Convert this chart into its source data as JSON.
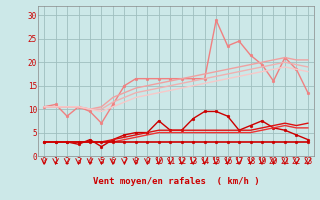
{
  "bg_color": "#cce8e8",
  "grid_color": "#9fbfbf",
  "xlabel": "Vent moyen/en rafales  ( km/h )",
  "xlim": [
    -0.5,
    23.5
  ],
  "ylim": [
    0,
    32
  ],
  "yticks": [
    0,
    5,
    10,
    15,
    20,
    25,
    30
  ],
  "xticks": [
    0,
    1,
    2,
    3,
    4,
    5,
    6,
    7,
    8,
    9,
    10,
    11,
    12,
    13,
    14,
    15,
    16,
    17,
    18,
    19,
    20,
    21,
    22,
    23
  ],
  "label_color": "#cc0000",
  "lines_light": [
    {
      "x": [
        0,
        1,
        2,
        3,
        4,
        5,
        6,
        7,
        8,
        9,
        10,
        11,
        12,
        13,
        14,
        15,
        16,
        17,
        18,
        19,
        20,
        21,
        22,
        23
      ],
      "y": [
        10.5,
        11.0,
        8.5,
        10.5,
        9.5,
        7.0,
        11.0,
        15.0,
        16.5,
        16.5,
        16.5,
        16.5,
        16.5,
        16.5,
        16.5,
        29.0,
        23.5,
        24.5,
        21.5,
        19.5,
        16.0,
        21.0,
        18.5,
        13.5
      ],
      "color": "#f08080",
      "marker": "o",
      "ms": 2,
      "lw": 1.0
    },
    {
      "x": [
        0,
        1,
        2,
        3,
        4,
        5,
        6,
        7,
        8,
        9,
        10,
        11,
        12,
        13,
        14,
        15,
        16,
        17,
        18,
        19,
        20,
        21,
        22,
        23
      ],
      "y": [
        10.5,
        10.5,
        10.5,
        10.5,
        10.0,
        10.5,
        12.5,
        13.5,
        14.5,
        15.0,
        15.5,
        16.0,
        16.5,
        17.0,
        17.5,
        18.0,
        18.5,
        19.0,
        19.5,
        20.0,
        20.5,
        21.0,
        20.5,
        20.5
      ],
      "color": "#f0a0a0",
      "marker": null,
      "ms": 0,
      "lw": 1.0
    },
    {
      "x": [
        0,
        1,
        2,
        3,
        4,
        5,
        6,
        7,
        8,
        9,
        10,
        11,
        12,
        13,
        14,
        15,
        16,
        17,
        18,
        19,
        20,
        21,
        22,
        23
      ],
      "y": [
        10.5,
        10.5,
        10.5,
        10.5,
        10.0,
        10.0,
        11.5,
        12.5,
        13.5,
        14.0,
        14.5,
        15.0,
        15.5,
        16.0,
        16.5,
        17.0,
        17.5,
        18.0,
        18.5,
        19.0,
        19.5,
        20.0,
        19.5,
        19.0
      ],
      "color": "#f0b0b0",
      "marker": null,
      "ms": 0,
      "lw": 1.0
    },
    {
      "x": [
        0,
        1,
        2,
        3,
        4,
        5,
        6,
        7,
        8,
        9,
        10,
        11,
        12,
        13,
        14,
        15,
        16,
        17,
        18,
        19,
        20,
        21,
        22,
        23
      ],
      "y": [
        10.5,
        10.5,
        10.5,
        10.5,
        10.0,
        9.5,
        10.5,
        11.5,
        12.5,
        13.0,
        13.5,
        14.0,
        14.5,
        15.0,
        15.5,
        16.0,
        16.5,
        17.0,
        17.5,
        18.0,
        18.5,
        19.0,
        18.5,
        18.0
      ],
      "color": "#f8c8c8",
      "marker": null,
      "ms": 0,
      "lw": 1.0
    }
  ],
  "lines_dark": [
    {
      "x": [
        0,
        1,
        2,
        3,
        4,
        5,
        6,
        7,
        8,
        9,
        10,
        11,
        12,
        13,
        14,
        15,
        16,
        17,
        18,
        19,
        20,
        21,
        22,
        23
      ],
      "y": [
        3.0,
        3.0,
        3.0,
        2.5,
        3.5,
        2.0,
        3.5,
        4.5,
        5.0,
        5.0,
        7.5,
        5.5,
        5.5,
        8.0,
        9.5,
        9.5,
        8.5,
        5.5,
        6.5,
        7.5,
        6.0,
        5.5,
        4.5,
        3.5
      ],
      "color": "#cc0000",
      "marker": "o",
      "ms": 2,
      "lw": 1.0
    },
    {
      "x": [
        0,
        1,
        2,
        3,
        4,
        5,
        6,
        7,
        8,
        9,
        10,
        11,
        12,
        13,
        14,
        15,
        16,
        17,
        18,
        19,
        20,
        21,
        22,
        23
      ],
      "y": [
        3.0,
        3.0,
        3.0,
        3.0,
        3.0,
        3.0,
        3.5,
        4.0,
        4.5,
        5.0,
        5.5,
        5.5,
        5.5,
        5.5,
        5.5,
        5.5,
        5.5,
        5.5,
        5.5,
        6.0,
        6.5,
        7.0,
        6.5,
        7.0
      ],
      "color": "#dd1111",
      "marker": null,
      "ms": 0,
      "lw": 1.0
    },
    {
      "x": [
        0,
        1,
        2,
        3,
        4,
        5,
        6,
        7,
        8,
        9,
        10,
        11,
        12,
        13,
        14,
        15,
        16,
        17,
        18,
        19,
        20,
        21,
        22,
        23
      ],
      "y": [
        3.0,
        3.0,
        3.0,
        3.0,
        3.0,
        3.0,
        3.0,
        3.5,
        4.0,
        4.5,
        5.0,
        5.0,
        5.0,
        5.0,
        5.0,
        5.0,
        5.0,
        5.0,
        5.0,
        5.5,
        6.0,
        6.5,
        6.0,
        6.0
      ],
      "color": "#ee3333",
      "marker": null,
      "ms": 0,
      "lw": 1.0
    },
    {
      "x": [
        0,
        1,
        2,
        3,
        4,
        5,
        6,
        7,
        8,
        9,
        10,
        11,
        12,
        13,
        14,
        15,
        16,
        17,
        18,
        19,
        20,
        21,
        22,
        23
      ],
      "y": [
        3.0,
        3.0,
        3.0,
        3.0,
        3.0,
        3.0,
        3.0,
        3.0,
        3.0,
        3.0,
        3.0,
        3.0,
        3.0,
        3.0,
        3.0,
        3.0,
        3.0,
        3.0,
        3.0,
        3.0,
        3.0,
        3.0,
        3.0,
        3.0
      ],
      "color": "#cc0000",
      "marker": "o",
      "ms": 2,
      "lw": 1.2
    }
  ],
  "tick_fontsize": 5.5,
  "xlabel_fontsize": 6.5
}
